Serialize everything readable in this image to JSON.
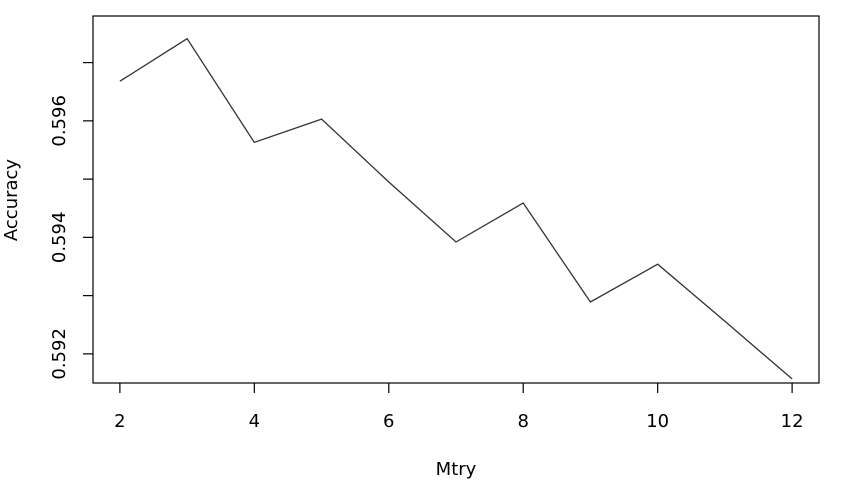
{
  "chart_data": {
    "type": "line",
    "title": "",
    "xlabel": "Mtry",
    "ylabel": "Accuracy",
    "x": [
      2,
      3,
      4,
      5,
      6,
      7,
      8,
      9,
      10,
      11,
      12
    ],
    "series": [
      {
        "values": [
          0.59668,
          0.59741,
          0.59563,
          0.59603,
          0.59495,
          0.59392,
          0.59459,
          0.59289,
          0.59354,
          0.59256,
          0.59157
        ]
      }
    ],
    "xlim": [
      1.6,
      12.4
    ],
    "ylim": [
      0.5915,
      0.5978
    ],
    "xticks": [
      2,
      4,
      6,
      8,
      10,
      12
    ],
    "xtick_labels": [
      "2",
      "4",
      "6",
      "8",
      "10",
      "12"
    ],
    "yticks": [
      0.592,
      0.593,
      0.594,
      0.595,
      0.596,
      0.597
    ],
    "ytick_labels": [
      "0.592",
      "",
      "0.594",
      "",
      "0.596",
      ""
    ],
    "grid": false,
    "line_color": "#333333"
  }
}
